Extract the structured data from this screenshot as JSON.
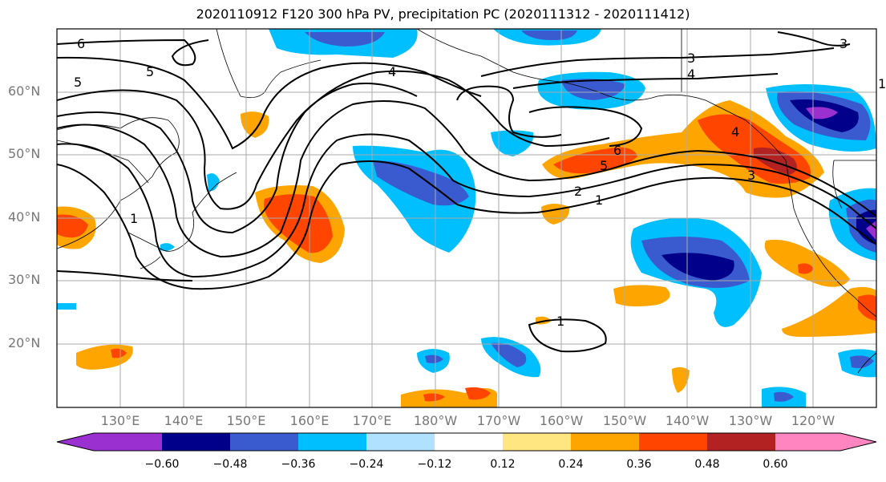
{
  "title": "2020110912 F120 300 hPa PV, precipitation PC (2020111312 - 2020111412)",
  "lat_labels": [
    "60°N",
    "50°N",
    "40°N",
    "30°N",
    "20°N"
  ],
  "lon_labels": [
    "130°E",
    "140°E",
    "150°E",
    "160°E",
    "170°E",
    "180°W",
    "170°W",
    "160°W",
    "150°W",
    "140°W",
    "130°W",
    "120°W"
  ],
  "colorbar": {
    "ticks": [
      "−0.60",
      "−0.48",
      "−0.36",
      "−0.24",
      "−0.12",
      "0.12",
      "0.24",
      "0.36",
      "0.48",
      "0.60"
    ],
    "colors": [
      "#9b30d0",
      "#00008b",
      "#3a5bd0",
      "#00bfff",
      "#b0e2ff",
      "#ffffff",
      "#ffe680",
      "#ffa500",
      "#ff4500",
      "#b22222",
      "#ff85c0"
    ]
  },
  "contour_labels": [
    "6",
    "5",
    "5",
    "4",
    "3",
    "4",
    "3",
    "1",
    "6",
    "5",
    "2",
    "1",
    "1",
    "3",
    "4",
    "1"
  ]
}
